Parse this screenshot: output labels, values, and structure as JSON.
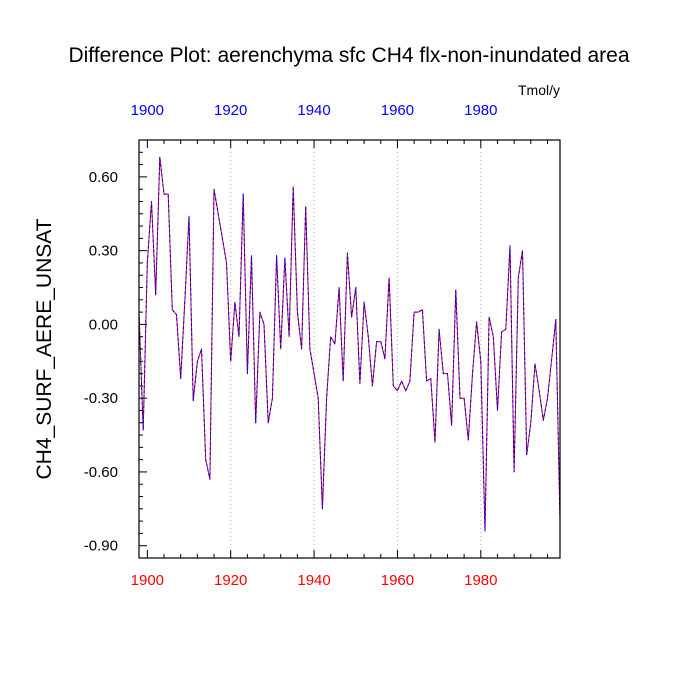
{
  "chart_data": {
    "type": "line",
    "title": "Difference Plot: aerenchyma sfc CH4 flx-non-inundated area",
    "units": "Tmol/y",
    "ylabel": "CH4_SURF_AERE_UNSAT",
    "xlabel": "",
    "xlim": [
      1898,
      1999
    ],
    "ylim": [
      -0.95,
      0.75
    ],
    "x_ticks": [
      1900,
      1920,
      1940,
      1960,
      1980
    ],
    "x_tick_labels": [
      "1900",
      "1920",
      "1940",
      "1960",
      "1980"
    ],
    "x_minor_step": 4,
    "y_ticks": [
      0.6,
      0.3,
      0.0,
      -0.3,
      -0.6,
      -0.9
    ],
    "y_tick_labels": [
      "0.60",
      "0.30",
      "0.00",
      "-0.30",
      "-0.60",
      "-0.90"
    ],
    "y_minor_step": 0.05,
    "grid": "vertical-dotted",
    "colors": {
      "bottom_axis_labels": "#ff0000",
      "top_axis_labels": "#0000ff",
      "line_primary": "#0000ff",
      "line_secondary": "#ff0000",
      "gridline": "#b0b0b0",
      "frame": "#000000"
    },
    "series": [
      {
        "name": "CH4_SURF_AERE_UNSAT",
        "x": [
          1898,
          1899,
          1900,
          1901,
          1902,
          1903,
          1904,
          1905,
          1906,
          1907,
          1908,
          1909,
          1910,
          1911,
          1912,
          1913,
          1914,
          1915,
          1916,
          1917,
          1918,
          1919,
          1920,
          1921,
          1922,
          1923,
          1924,
          1925,
          1926,
          1927,
          1928,
          1929,
          1930,
          1931,
          1932,
          1933,
          1934,
          1935,
          1936,
          1937,
          1938,
          1939,
          1940,
          1941,
          1942,
          1943,
          1944,
          1945,
          1946,
          1947,
          1948,
          1949,
          1950,
          1951,
          1952,
          1953,
          1954,
          1955,
          1956,
          1957,
          1958,
          1959,
          1960,
          1961,
          1962,
          1963,
          1964,
          1965,
          1966,
          1967,
          1968,
          1969,
          1970,
          1971,
          1972,
          1973,
          1974,
          1975,
          1976,
          1977,
          1978,
          1979,
          1980,
          1981,
          1982,
          1983,
          1984,
          1985,
          1986,
          1987,
          1988,
          1989,
          1990,
          1991,
          1992,
          1993,
          1994,
          1995,
          1996,
          1997,
          1998,
          1999
        ],
        "y": [
          0.05,
          -0.43,
          0.25,
          0.5,
          0.12,
          0.68,
          0.53,
          0.53,
          0.06,
          0.04,
          -0.22,
          0.1,
          0.44,
          -0.31,
          -0.15,
          -0.1,
          -0.55,
          -0.63,
          0.55,
          0.45,
          0.35,
          0.25,
          -0.15,
          0.09,
          -0.05,
          0.53,
          -0.2,
          0.28,
          -0.4,
          0.05,
          0.0,
          -0.4,
          -0.3,
          0.28,
          -0.1,
          0.27,
          -0.05,
          0.56,
          0.05,
          -0.1,
          0.48,
          -0.1,
          -0.2,
          -0.3,
          -0.75,
          -0.3,
          -0.05,
          -0.08,
          0.15,
          -0.23,
          0.29,
          0.03,
          0.15,
          -0.24,
          0.09,
          -0.05,
          -0.25,
          -0.07,
          -0.07,
          -0.14,
          0.19,
          -0.25,
          -0.27,
          -0.23,
          -0.27,
          -0.23,
          0.05,
          0.05,
          0.06,
          -0.23,
          -0.22,
          -0.48,
          -0.02,
          -0.2,
          -0.2,
          -0.41,
          0.14,
          -0.3,
          -0.3,
          -0.47,
          -0.2,
          0.01,
          -0.15,
          -0.84,
          0.03,
          -0.05,
          -0.35,
          -0.03,
          -0.02,
          0.32,
          -0.6,
          0.19,
          0.3,
          -0.53,
          -0.4,
          -0.16,
          -0.27,
          -0.39,
          -0.3,
          -0.14,
          0.02,
          -0.8
        ]
      }
    ]
  }
}
